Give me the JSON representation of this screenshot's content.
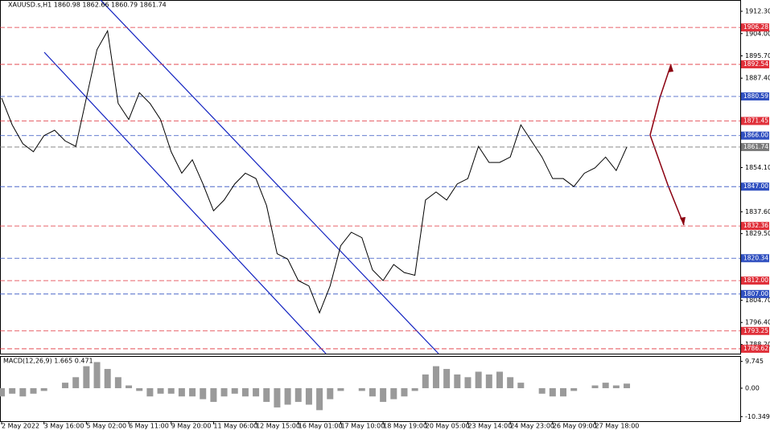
{
  "chart_data": {
    "type": "line",
    "title": "XAUUSD.s,H1  1860.98 1862.66 1860.79 1861.74",
    "categories": [
      "2 May 2022",
      null,
      null,
      null,
      "3 May 16:00",
      null,
      null,
      null,
      "5 May 02:00",
      null,
      null,
      null,
      "6 May 11:00",
      null,
      null,
      null,
      "9 May 20:00",
      null,
      null,
      null,
      "11 May 06:00",
      null,
      null,
      null,
      "12 May 15:00",
      null,
      null,
      null,
      "16 May 01:00",
      null,
      null,
      null,
      "17 May 10:00",
      null,
      null,
      null,
      "18 May 19:00",
      null,
      null,
      null,
      "20 May 05:00",
      null,
      null,
      null,
      "23 May 14:00",
      null,
      null,
      null,
      "24 May 23:00",
      null,
      null,
      null,
      "26 May 09:00",
      null,
      null,
      null,
      "27 May 18:00",
      null,
      null,
      null
    ],
    "series": [
      {
        "name": "XAUUSD.s,H1",
        "color": "#000000",
        "values": [
          1880,
          1870,
          1863,
          1860,
          1866,
          1868,
          1864,
          1862,
          1880,
          1898,
          1905,
          1878,
          1872,
          1882,
          1878,
          1872,
          1860,
          1852,
          1857,
          1848,
          1838,
          1842,
          1848,
          1852,
          1850,
          1840,
          1822,
          1820,
          1812,
          1810,
          1800,
          1810,
          1825,
          1830,
          1828,
          1816,
          1812,
          1818,
          1815,
          1814,
          1842,
          1845,
          1842,
          1848,
          1850,
          1862,
          1856,
          1856,
          1858,
          1870,
          1864,
          1858,
          1850,
          1850,
          1847,
          1852,
          1854,
          1858,
          1853,
          1861.74
        ]
      }
    ],
    "ylim": [
      1784.8,
      1916.5
    ],
    "yticks": [
      {
        "value": 1912.3,
        "label": "1912.30"
      },
      {
        "value": 1904,
        "label": "1904.00"
      },
      {
        "value": 1895.7,
        "label": "1895.70"
      },
      {
        "value": 1887.4,
        "label": "1887.40"
      },
      {
        "value": 1854.1,
        "label": "1854.10"
      },
      {
        "value": 1837.6,
        "label": "1837.60"
      },
      {
        "value": 1829.5,
        "label": "1829.50"
      },
      {
        "value": 1804.7,
        "label": "1804.70"
      },
      {
        "value": 1796.4,
        "label": "1796.40"
      },
      {
        "value": 1788.2,
        "label": "1788.20"
      }
    ],
    "levels": [
      {
        "value": 1906.28,
        "label": "1906.28",
        "color": "#e0303a"
      },
      {
        "value": 1892.54,
        "label": "1892.54",
        "color": "#e0303a"
      },
      {
        "value": 1880.59,
        "label": "1880.59",
        "color": "#3050c0"
      },
      {
        "value": 1871.45,
        "label": "1871.45",
        "color": "#e0303a"
      },
      {
        "value": 1866,
        "label": "1866.00",
        "color": "#3050c0"
      },
      {
        "value": 1861.74,
        "label": "1861.74",
        "color": "#7a7a7a"
      },
      {
        "value": 1847,
        "label": "1847.00",
        "color": "#3050c0"
      },
      {
        "value": 1832.36,
        "label": "1832.36",
        "color": "#e0303a"
      },
      {
        "value": 1820.34,
        "label": "1820.34",
        "color": "#3050c0"
      },
      {
        "value": 1812,
        "label": "1812.00",
        "color": "#e0303a"
      },
      {
        "value": 1807,
        "label": "1807.00",
        "color": "#3050c0"
      },
      {
        "value": 1793.25,
        "label": "1793.25",
        "color": "#e0303a"
      },
      {
        "value": 1786.62,
        "label": "1786.62",
        "color": "#e0303a"
      }
    ],
    "macd": {
      "type": "bar",
      "title": "MACD(12,26,9) 1.665 0.471",
      "color": "#9a9a9a",
      "values": [
        -3,
        -2,
        -3,
        -2,
        -1,
        0,
        2,
        4,
        8,
        9.5,
        7,
        4,
        1,
        -1,
        -3,
        -2,
        -2,
        -3,
        -3,
        -4,
        -5,
        -3,
        -2,
        -3,
        -3,
        -5,
        -7,
        -6,
        -5,
        -6,
        -8,
        -4,
        -1,
        0,
        -1,
        -3,
        -5,
        -4,
        -3,
        -1,
        5,
        8,
        7,
        5,
        4,
        6,
        5,
        6,
        4,
        2,
        0,
        -2,
        -3,
        -3,
        -1,
        0,
        1,
        2,
        1,
        1.665
      ],
      "ylim": [
        -12,
        11.4
      ],
      "yticks": [
        9.745,
        {
          "value": 0,
          "label": "0.00"
        },
        -10.349
      ]
    }
  }
}
